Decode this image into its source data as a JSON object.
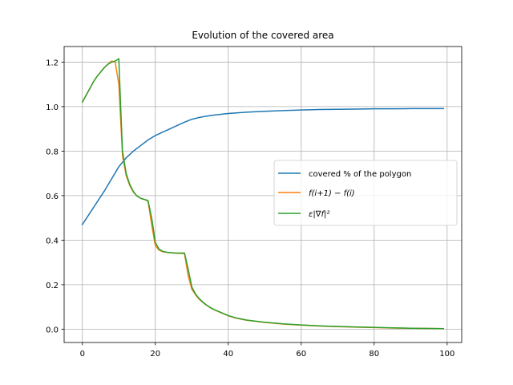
{
  "chart_data": {
    "type": "line",
    "title": "Evolution of the covered area",
    "xlabel": "",
    "ylabel": "",
    "xlim": [
      -5,
      104
    ],
    "ylim": [
      -0.06,
      1.27
    ],
    "xticks": [
      0,
      20,
      40,
      60,
      80,
      100
    ],
    "yticks": [
      0.0,
      0.2,
      0.4,
      0.6,
      0.8,
      1.0,
      1.2
    ],
    "xtick_labels": [
      "0",
      "20",
      "40",
      "60",
      "80",
      "100"
    ],
    "ytick_labels": [
      "0.0",
      "0.2",
      "0.4",
      "0.6",
      "0.8",
      "1.0",
      "1.2"
    ],
    "grid": true,
    "legend_position": "center-right",
    "series": [
      {
        "name": "covered % of the polygon",
        "color": "#1f77b4",
        "x": [
          0,
          2,
          4,
          6,
          8,
          10,
          12,
          14,
          16,
          18,
          20,
          22,
          24,
          26,
          28,
          30,
          32,
          34,
          36,
          40,
          45,
          50,
          55,
          60,
          65,
          70,
          75,
          80,
          85,
          90,
          95,
          99
        ],
        "y": [
          0.47,
          0.52,
          0.57,
          0.62,
          0.675,
          0.73,
          0.77,
          0.8,
          0.825,
          0.85,
          0.87,
          0.885,
          0.9,
          0.915,
          0.93,
          0.943,
          0.951,
          0.957,
          0.962,
          0.969,
          0.975,
          0.979,
          0.982,
          0.985,
          0.987,
          0.988,
          0.989,
          0.99,
          0.99,
          0.991,
          0.991,
          0.991
        ]
      },
      {
        "name": "f(i+1) − f(i)",
        "color": "#ff7f0e",
        "x": [
          0,
          1,
          2,
          3,
          4,
          5,
          6,
          7,
          8,
          9,
          10,
          11,
          12,
          13,
          14,
          15,
          16,
          17,
          18,
          19,
          20,
          21,
          22,
          23,
          24,
          25,
          26,
          27,
          28,
          29,
          30,
          31,
          32,
          33,
          34,
          35,
          36,
          38,
          40,
          42,
          45,
          50,
          55,
          60,
          65,
          70,
          75,
          80,
          85,
          90,
          95,
          99
        ],
        "y": [
          1.02,
          1.05,
          1.08,
          1.11,
          1.135,
          1.155,
          1.175,
          1.19,
          1.205,
          1.2,
          1.1,
          0.78,
          0.69,
          0.645,
          0.615,
          0.598,
          0.588,
          0.583,
          0.575,
          0.47,
          0.375,
          0.355,
          0.348,
          0.345,
          0.343,
          0.342,
          0.341,
          0.34,
          0.34,
          0.24,
          0.18,
          0.155,
          0.135,
          0.12,
          0.108,
          0.097,
          0.088,
          0.074,
          0.06,
          0.05,
          0.04,
          0.03,
          0.023,
          0.018,
          0.014,
          0.011,
          0.009,
          0.007,
          0.005,
          0.004,
          0.003,
          0.002
        ]
      },
      {
        "name": "ε|∇f|²",
        "color": "#2ca02c",
        "x": [
          0,
          1,
          2,
          3,
          4,
          5,
          6,
          7,
          8,
          9,
          9.5,
          10,
          10.5,
          11,
          12,
          13,
          14,
          15,
          16,
          17,
          18,
          19,
          20,
          21,
          22,
          23,
          24,
          25,
          26,
          27,
          28,
          29,
          30,
          31,
          32,
          33,
          34,
          35,
          36,
          38,
          40,
          42,
          45,
          50,
          55,
          60,
          65,
          70,
          75,
          80,
          85,
          90,
          95,
          99
        ],
        "y": [
          1.02,
          1.05,
          1.08,
          1.11,
          1.135,
          1.155,
          1.175,
          1.19,
          1.2,
          1.205,
          1.21,
          1.215,
          1.0,
          0.8,
          0.7,
          0.65,
          0.618,
          0.598,
          0.588,
          0.583,
          0.578,
          0.5,
          0.39,
          0.36,
          0.35,
          0.346,
          0.344,
          0.343,
          0.342,
          0.342,
          0.342,
          0.27,
          0.19,
          0.158,
          0.138,
          0.122,
          0.109,
          0.098,
          0.089,
          0.075,
          0.061,
          0.051,
          0.041,
          0.031,
          0.024,
          0.019,
          0.015,
          0.012,
          0.01,
          0.008,
          0.006,
          0.004,
          0.003,
          0.002
        ]
      }
    ]
  }
}
